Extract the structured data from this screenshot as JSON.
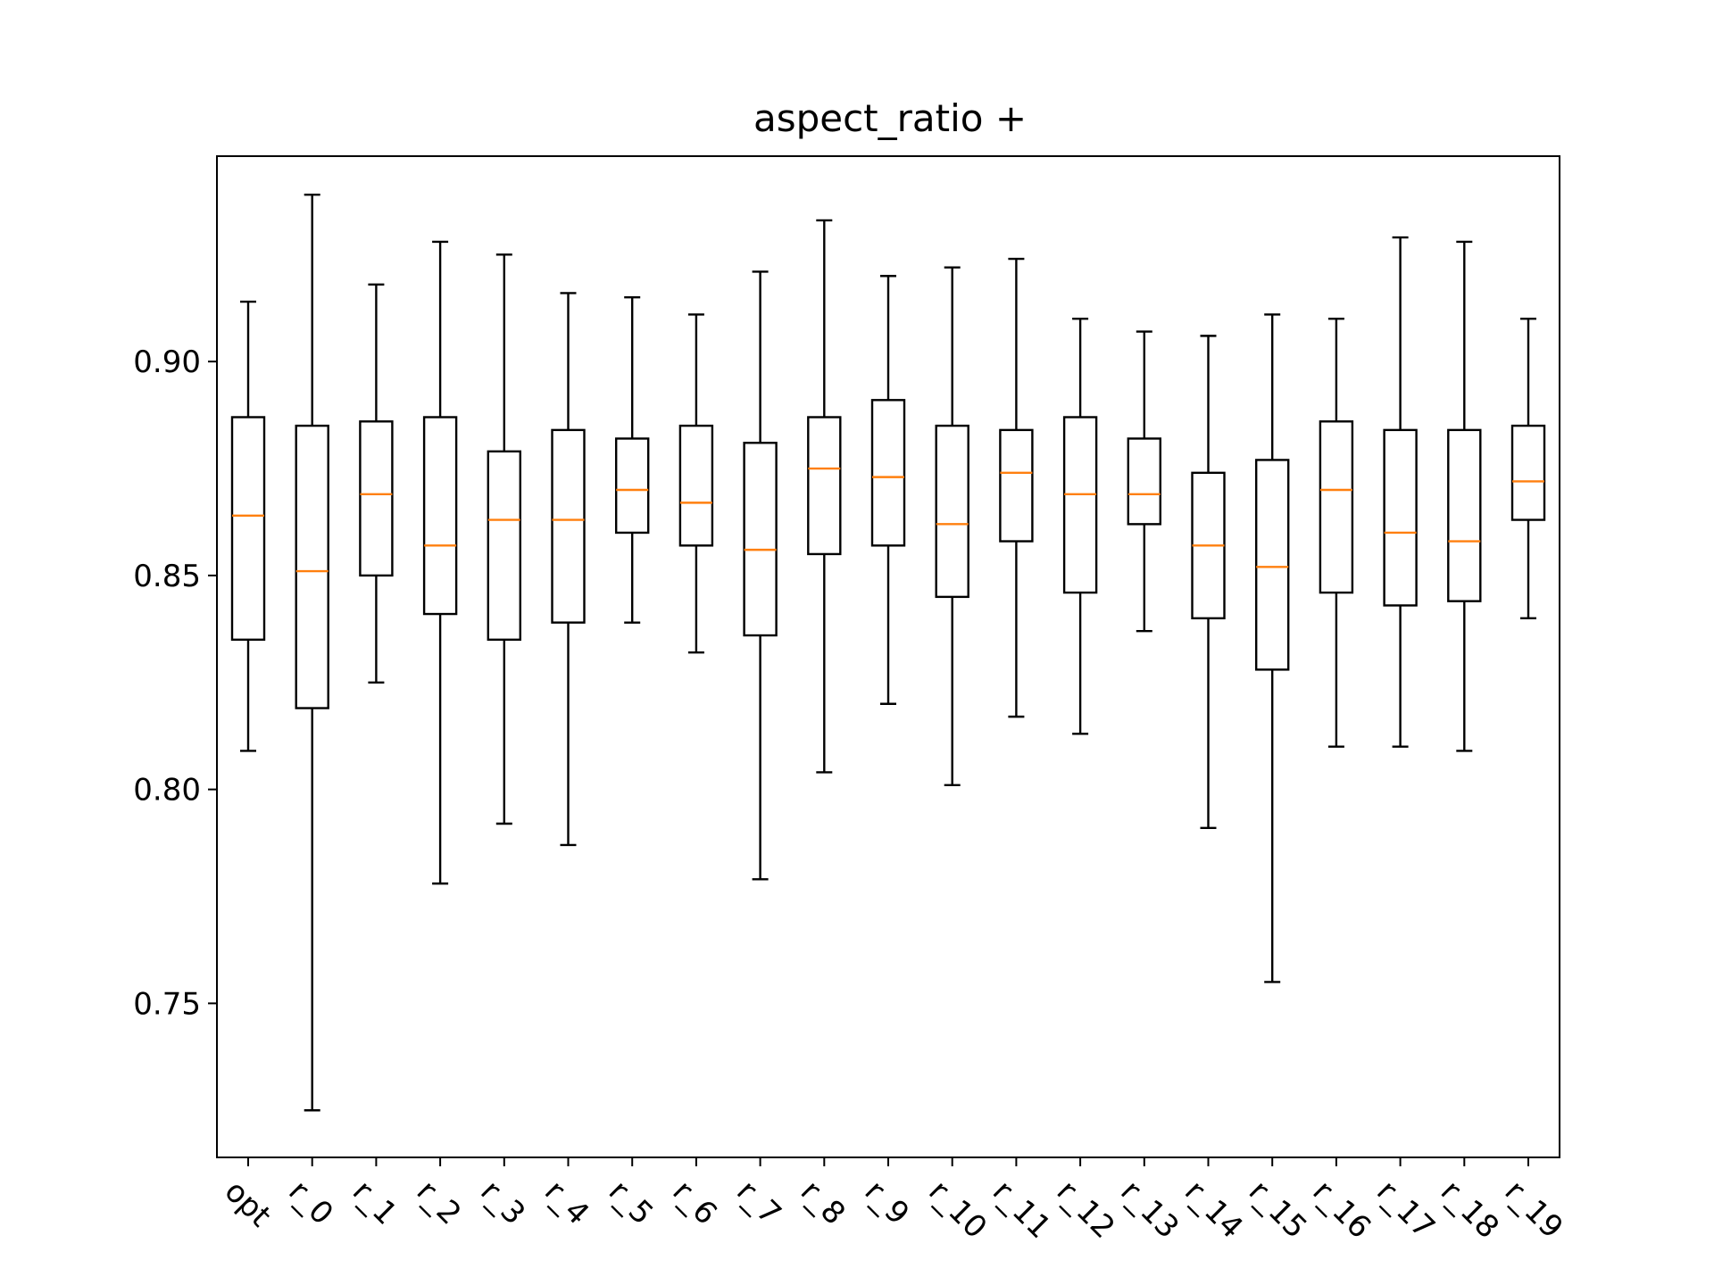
{
  "chart_data": {
    "type": "boxplot",
    "title": "aspect_ratio +",
    "xlabel": "",
    "ylabel": "",
    "ylim": [
      0.714,
      0.948
    ],
    "yticks": [
      0.75,
      0.8,
      0.85,
      0.9
    ],
    "ytick_labels": [
      "0.75",
      "0.80",
      "0.85",
      "0.90"
    ],
    "grid": false,
    "categories": [
      "opt",
      "r_0",
      "r_1",
      "r_2",
      "r_3",
      "r_4",
      "r_5",
      "r_6",
      "r_7",
      "r_8",
      "r_9",
      "r_10",
      "r_11",
      "r_12",
      "r_13",
      "r_14",
      "r_15",
      "r_16",
      "r_17",
      "r_18",
      "r_19"
    ],
    "boxes": [
      {
        "whisker_low": 0.809,
        "q1": 0.835,
        "median": 0.864,
        "q3": 0.887,
        "whisker_high": 0.914
      },
      {
        "whisker_low": 0.725,
        "q1": 0.819,
        "median": 0.851,
        "q3": 0.885,
        "whisker_high": 0.939
      },
      {
        "whisker_low": 0.825,
        "q1": 0.85,
        "median": 0.869,
        "q3": 0.886,
        "whisker_high": 0.918
      },
      {
        "whisker_low": 0.778,
        "q1": 0.841,
        "median": 0.857,
        "q3": 0.887,
        "whisker_high": 0.928
      },
      {
        "whisker_low": 0.792,
        "q1": 0.835,
        "median": 0.863,
        "q3": 0.879,
        "whisker_high": 0.925
      },
      {
        "whisker_low": 0.787,
        "q1": 0.839,
        "median": 0.863,
        "q3": 0.884,
        "whisker_high": 0.916
      },
      {
        "whisker_low": 0.839,
        "q1": 0.86,
        "median": 0.87,
        "q3": 0.882,
        "whisker_high": 0.915
      },
      {
        "whisker_low": 0.832,
        "q1": 0.857,
        "median": 0.867,
        "q3": 0.885,
        "whisker_high": 0.911
      },
      {
        "whisker_low": 0.779,
        "q1": 0.836,
        "median": 0.856,
        "q3": 0.881,
        "whisker_high": 0.921
      },
      {
        "whisker_low": 0.804,
        "q1": 0.855,
        "median": 0.875,
        "q3": 0.887,
        "whisker_high": 0.933
      },
      {
        "whisker_low": 0.82,
        "q1": 0.857,
        "median": 0.873,
        "q3": 0.891,
        "whisker_high": 0.92
      },
      {
        "whisker_low": 0.801,
        "q1": 0.845,
        "median": 0.862,
        "q3": 0.885,
        "whisker_high": 0.922
      },
      {
        "whisker_low": 0.817,
        "q1": 0.858,
        "median": 0.874,
        "q3": 0.884,
        "whisker_high": 0.924
      },
      {
        "whisker_low": 0.813,
        "q1": 0.846,
        "median": 0.869,
        "q3": 0.887,
        "whisker_high": 0.91
      },
      {
        "whisker_low": 0.837,
        "q1": 0.862,
        "median": 0.869,
        "q3": 0.882,
        "whisker_high": 0.907
      },
      {
        "whisker_low": 0.791,
        "q1": 0.84,
        "median": 0.857,
        "q3": 0.874,
        "whisker_high": 0.906
      },
      {
        "whisker_low": 0.755,
        "q1": 0.828,
        "median": 0.852,
        "q3": 0.877,
        "whisker_high": 0.911
      },
      {
        "whisker_low": 0.81,
        "q1": 0.846,
        "median": 0.87,
        "q3": 0.886,
        "whisker_high": 0.91
      },
      {
        "whisker_low": 0.81,
        "q1": 0.843,
        "median": 0.86,
        "q3": 0.884,
        "whisker_high": 0.929
      },
      {
        "whisker_low": 0.809,
        "q1": 0.844,
        "median": 0.858,
        "q3": 0.884,
        "whisker_high": 0.928
      },
      {
        "whisker_low": 0.84,
        "q1": 0.863,
        "median": 0.872,
        "q3": 0.885,
        "whisker_high": 0.91
      }
    ],
    "colors": {
      "box": "#000000",
      "median": "#ff7f0e",
      "axes": "#000000",
      "background": "#ffffff"
    }
  }
}
